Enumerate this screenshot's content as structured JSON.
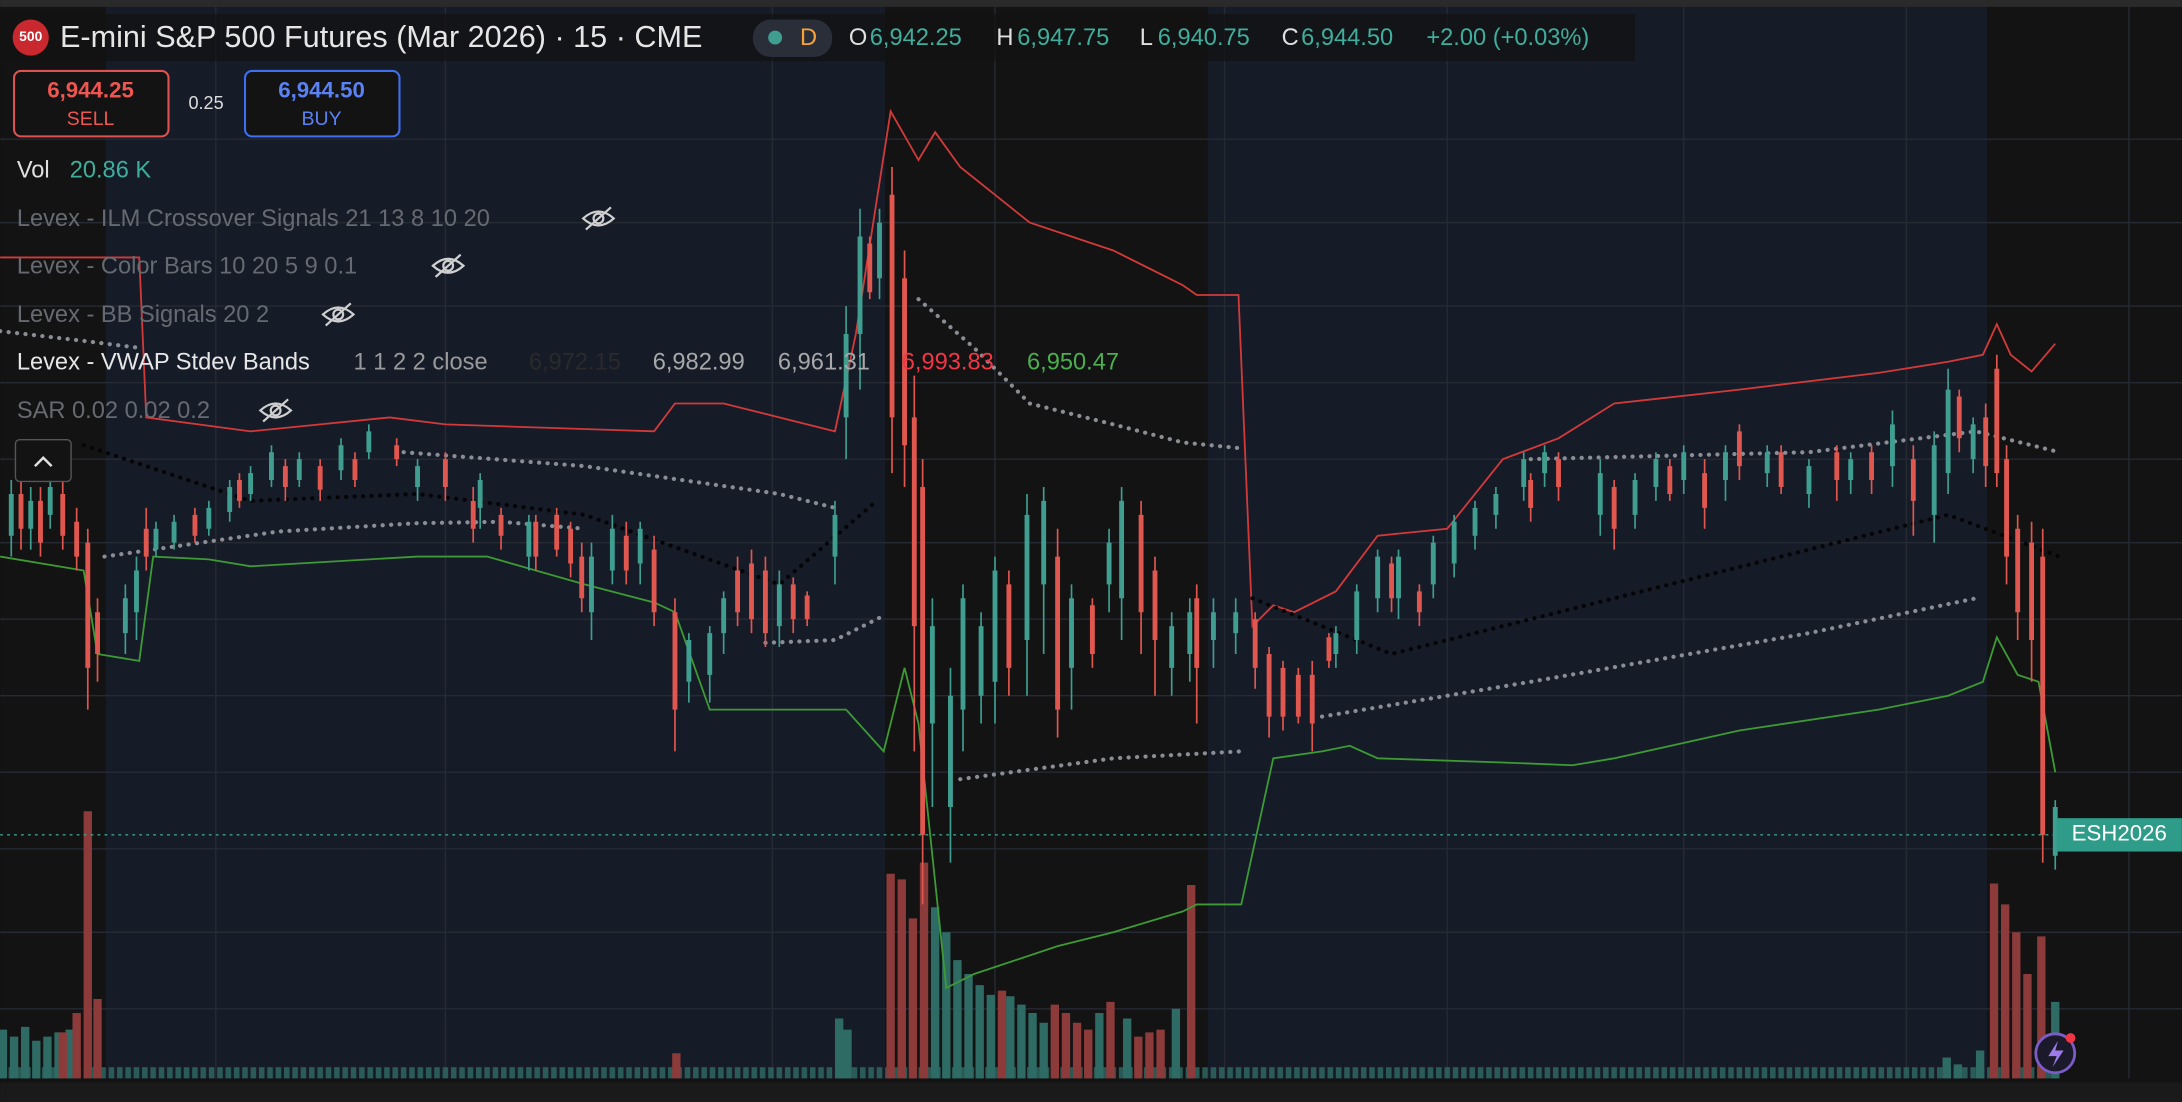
{
  "header": {
    "badge": "500",
    "title": "E-mini S&P 500 Futures (Mar 2026) · 15 · CME",
    "interval_badge": "D",
    "ohlc": {
      "o_label": "O",
      "o": "6,942.25",
      "h_label": "H",
      "h": "6,947.75",
      "l_label": "L",
      "l": "6,940.75",
      "c_label": "C",
      "c": "6,944.50",
      "change": "+2.00 (+0.03%)"
    }
  },
  "trade": {
    "sell_price": "6,944.25",
    "sell_label": "SELL",
    "spread": "0.25",
    "buy_price": "6,944.50",
    "buy_label": "BUY"
  },
  "volume": {
    "label": "Vol",
    "value": "20.86 K"
  },
  "indicators": [
    {
      "name": "Levex - ILM Crossover Signals 21 13 8 10 20"
    },
    {
      "name": "Levex - Color Bars 10 20 5 9 0.1"
    },
    {
      "name": "Levex - BB Signals 20 2"
    },
    {
      "name": "Levex - VWAP Stdev Bands",
      "params": "1 1 2 2 close",
      "values": [
        "6,972.15",
        "6,982.99",
        "6,961.31",
        "6,993.83",
        "6,950.47"
      ]
    },
    {
      "name": "SAR 0.02 0.02 0.2"
    }
  ],
  "price_tag": "ESH2026"
}
